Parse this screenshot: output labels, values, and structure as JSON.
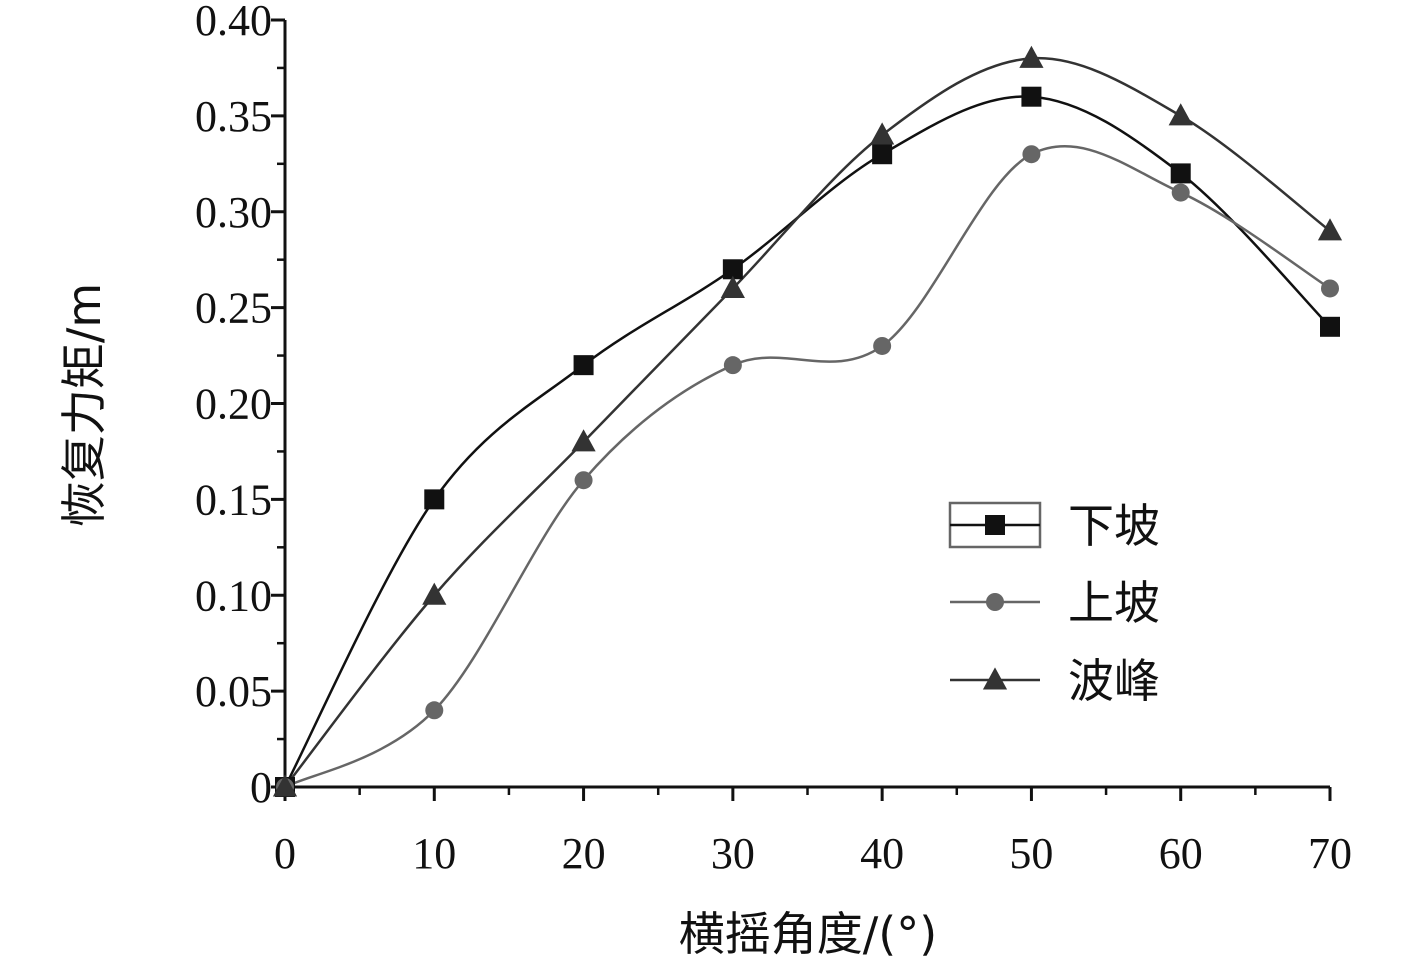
{
  "chart_data": {
    "type": "line",
    "xlabel": "横摇角度/(°)",
    "ylabel": "恢复力矩/m",
    "xlim": [
      0,
      70
    ],
    "ylim": [
      0,
      0.4
    ],
    "x_ticks": [
      "0",
      "10",
      "20",
      "30",
      "40",
      "50",
      "60",
      "70"
    ],
    "y_ticks": [
      "0",
      "0.05",
      "0.10",
      "0.15",
      "0.20",
      "0.25",
      "0.30",
      "0.35",
      "0.40"
    ],
    "grid": false,
    "legend_position": "center-right",
    "x": [
      0,
      10,
      20,
      30,
      40,
      50,
      60,
      70
    ],
    "series": [
      {
        "name": "下坡",
        "marker": "square",
        "color": "#111111",
        "values": [
          0,
          0.15,
          0.22,
          0.27,
          0.33,
          0.36,
          0.32,
          0.24
        ]
      },
      {
        "name": "上坡",
        "marker": "circle",
        "color": "#666666",
        "values": [
          0,
          0.04,
          0.16,
          0.22,
          0.23,
          0.33,
          0.31,
          0.26
        ]
      },
      {
        "name": "波峰",
        "marker": "triangle",
        "color": "#333333",
        "values": [
          0,
          0.1,
          0.18,
          0.26,
          0.34,
          0.38,
          0.35,
          0.29
        ]
      }
    ]
  }
}
